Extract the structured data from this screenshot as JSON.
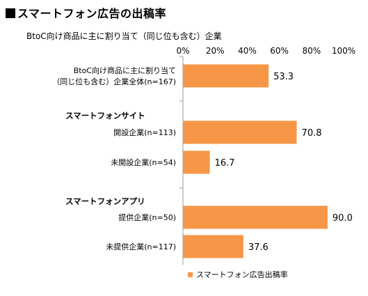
{
  "chart_data": {
    "type": "bar",
    "orientation": "horizontal",
    "title": "スマートフォン広告の出稿率",
    "subtitle": "BtoC向け商品に主に割り当て（同じ位も含む）企業",
    "x_ticks": [
      "0%",
      "20%",
      "40%",
      "60%",
      "80%",
      "100%"
    ],
    "xlim": [
      0,
      100
    ],
    "groups": [
      "スマートフォンサイト",
      "スマートフォンアプリ"
    ],
    "categories": [
      {
        "label": [
          "BtoC向け商品に主に割り当て",
          "（同じ位も含む）企業全体(n=167)"
        ],
        "value": 53.3,
        "value_label": "53.3"
      },
      {
        "label": [
          "開設企業(n=113)"
        ],
        "value": 70.8,
        "value_label": "70.8"
      },
      {
        "label": [
          "未開設企業(n=54)"
        ],
        "value": 16.7,
        "value_label": "16.7"
      },
      {
        "label": [
          "提供企業(n=50)"
        ],
        "value": 90.0,
        "value_label": "90.0"
      },
      {
        "label": [
          "未提供企業(n=117)"
        ],
        "value": 37.6,
        "value_label": "37.6"
      }
    ],
    "series": [
      {
        "name": "スマートフォン広告出稿率",
        "color": "#f79646"
      }
    ],
    "grid": false,
    "legend": "bottom"
  }
}
